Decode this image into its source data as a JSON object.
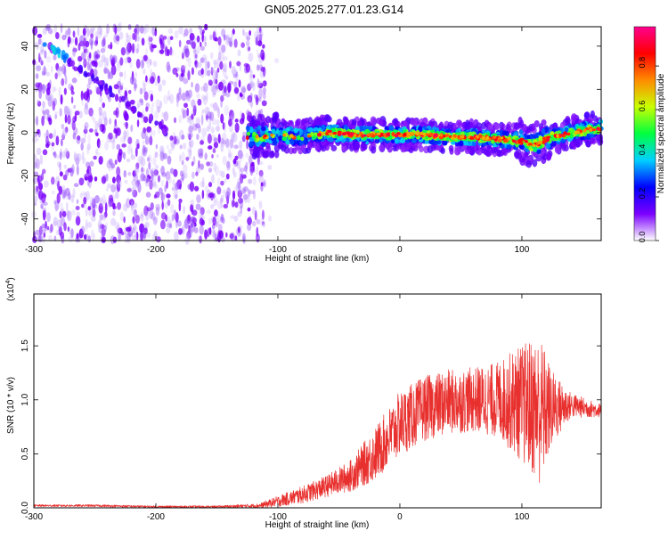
{
  "title": "GN05.2025.277.01.23.G14",
  "chart_data": [
    {
      "type": "heatmap",
      "xlabel": "Height of straight line (km)",
      "ylabel": "Frequency (Hz)",
      "xlim": [
        -300,
        165
      ],
      "ylim": [
        -50,
        49
      ],
      "xticks": [
        -300,
        -200,
        -100,
        0,
        100
      ],
      "yticks": [
        -40,
        -20,
        0,
        20,
        40
      ],
      "colorbar": {
        "label": "Normalized spectral amplitude",
        "range": [
          0,
          0.98
        ],
        "ticks": [
          "0.0",
          "0.2",
          "0.4",
          "0.6",
          "0.8"
        ],
        "tick_values": [
          0,
          0.2,
          0.4,
          0.6,
          0.8
        ],
        "colors": [
          "#ffffff",
          "#7b00ff",
          "#0000ff",
          "#00d0ff",
          "#00ff40",
          "#c8ff00",
          "#ff8c00",
          "#ff0000",
          "#ff0090"
        ]
      },
      "features": {
        "noise_region_x": [
          -300,
          -110
        ],
        "diagonal_track": {
          "x": [
            -300,
            -190
          ],
          "y": [
            45,
            0
          ]
        },
        "main_trace": {
          "x": [
            -125,
            -100,
            -80,
            -60,
            -40,
            -20,
            0,
            20,
            40,
            60,
            80,
            100,
            110,
            120,
            140,
            165
          ],
          "y": [
            -2,
            -1,
            -2,
            0,
            -1,
            -1,
            -1,
            -1,
            -2,
            -2,
            -3,
            -4,
            -6,
            -3,
            0,
            2
          ]
        }
      }
    },
    {
      "type": "line",
      "xlabel": "Height of straight line (km)",
      "ylabel": "SNR (10 * v/v)",
      "exponent_label": "(x10",
      "exponent_power": "4",
      "exponent_close": ")",
      "xlim": [
        -300,
        165
      ],
      "ylim": [
        0,
        1.98
      ],
      "xticks": [
        -300,
        -200,
        -100,
        0,
        100
      ],
      "yticks": [
        "0.0",
        "0.5",
        "1.0",
        "1.5"
      ],
      "ytick_values": [
        0,
        0.5,
        1.0,
        1.5
      ],
      "color": "#e8302e",
      "envelope": {
        "x": [
          -300,
          -250,
          -200,
          -150,
          -115,
          -100,
          -80,
          -60,
          -40,
          -20,
          0,
          20,
          40,
          60,
          80,
          95,
          105,
          115,
          125,
          140,
          165
        ],
        "y": [
          0.02,
          0.02,
          0.01,
          0.01,
          0.02,
          0.06,
          0.12,
          0.2,
          0.3,
          0.5,
          0.78,
          0.92,
          0.98,
          1.0,
          1.0,
          0.98,
          0.95,
          0.9,
          0.92,
          0.95,
          0.9
        ],
        "amplitude": [
          0.01,
          0.01,
          0.01,
          0.01,
          0.02,
          0.05,
          0.08,
          0.1,
          0.15,
          0.25,
          0.3,
          0.3,
          0.3,
          0.3,
          0.35,
          0.5,
          0.6,
          0.7,
          0.35,
          0.12,
          0.06
        ]
      }
    }
  ]
}
